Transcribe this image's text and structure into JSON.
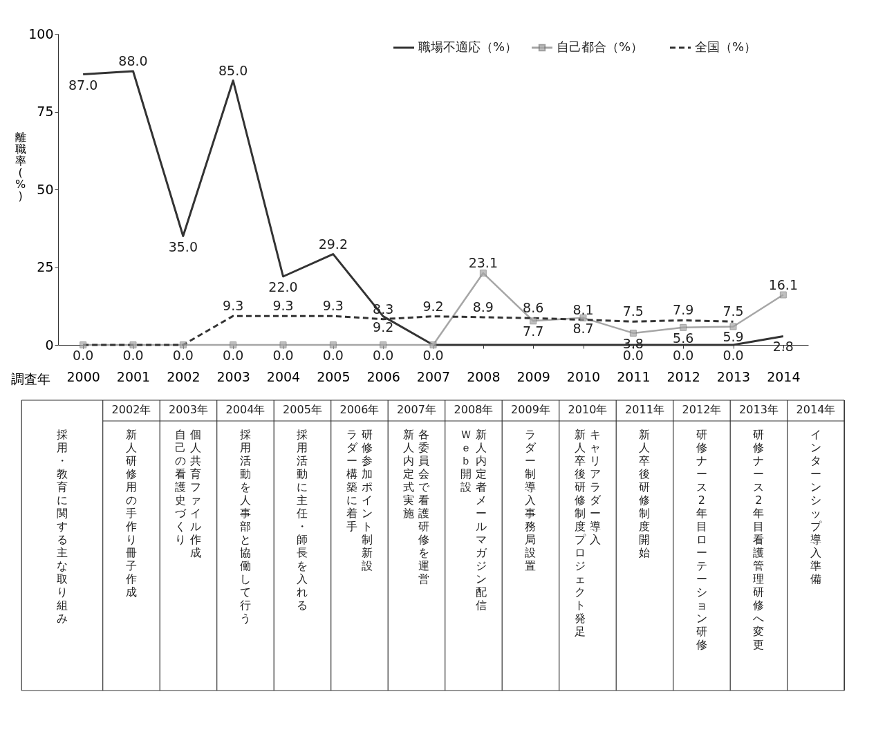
{
  "chart_data": {
    "type": "line",
    "xlabel": "調査年",
    "ylabel": "離職率(%)",
    "categories": [
      "2000",
      "2001",
      "2002",
      "2003",
      "2004",
      "2005",
      "2006",
      "2007",
      "2008",
      "2009",
      "2010",
      "2011",
      "2012",
      "2013",
      "2014"
    ],
    "ylim": [
      0,
      100
    ],
    "yticks": [
      0,
      25,
      50,
      75,
      100
    ],
    "grid": false,
    "legend": "top right",
    "series": [
      {
        "name": "職場不適応（%）",
        "color": "#333333",
        "line_style": "solid",
        "marker": "none",
        "values": [
          87.0,
          88.0,
          35.0,
          85.0,
          22.0,
          29.2,
          9.2,
          0.0,
          0.0,
          0.0,
          0.0,
          0.0,
          0.0,
          0.0,
          2.8
        ],
        "value_labels": [
          "87.0",
          "88.0",
          "35.0",
          "85.0",
          "22.0",
          "29.2",
          "9.2",
          null,
          null,
          null,
          null,
          "0.0",
          "0.0",
          "0.0",
          "2.8"
        ]
      },
      {
        "name": "自己都合（%）",
        "color": "#a6a6a6",
        "line_style": "solid",
        "marker": "square",
        "values": [
          0.0,
          0.0,
          0.0,
          0.0,
          0.0,
          0.0,
          0.0,
          0.0,
          23.1,
          7.7,
          8.7,
          3.8,
          5.6,
          5.9,
          16.1
        ],
        "value_labels": [
          "0.0",
          "0.0",
          "0.0",
          "0.0",
          "0.0",
          "0.0",
          "0.0",
          "0.0",
          "23.1",
          "7.7",
          "8.7",
          "3.8",
          "5.6",
          "5.9",
          "16.1"
        ]
      },
      {
        "name": "全国（%）",
        "color": "#333333",
        "line_style": "dashed",
        "marker": "none",
        "values": [
          0.0,
          0.0,
          0.0,
          9.3,
          9.3,
          9.3,
          8.3,
          9.2,
          8.9,
          8.6,
          8.1,
          7.5,
          7.9,
          7.5,
          null
        ],
        "value_labels": [
          null,
          null,
          null,
          "9.3",
          "9.3",
          "9.3",
          "8.3",
          "9.2",
          "8.9",
          "8.6",
          "8.1",
          "7.5",
          "7.9",
          "7.5",
          null
        ]
      }
    ],
    "annotations": [
      "採用・教育に関する主な取り組み",
      "2002年",
      "新人研修用の手作り冊子作成",
      "2003年",
      "個人共育ファイル作成",
      "自己の看護史づくり",
      "2004年",
      "採用活動を人事部と協働して行う",
      "2005年",
      "採用活動に主任・師長を入れる",
      "2006年",
      "研修参加ポイント制新設",
      "ラダー構築に着手",
      "2007年",
      "各委員会で看護研修を運営",
      "新人内定式実施",
      "2008年",
      "新人内定者メールマガジン配信",
      "Ｗｅｂ開設",
      "2009年",
      "ラダー制導入事務局設置",
      "2010年",
      "キャリアラダー導入",
      "新人卒後研修制度プロジェクト発足",
      "2011年",
      "新人卒後研修制度開始",
      "2012年",
      "研修ナース2年目ローテーション研修",
      "2013年",
      "研修ナース2年目看護管理研修へ変更",
      "2014年",
      "インターンシップ導入準備"
    ]
  }
}
